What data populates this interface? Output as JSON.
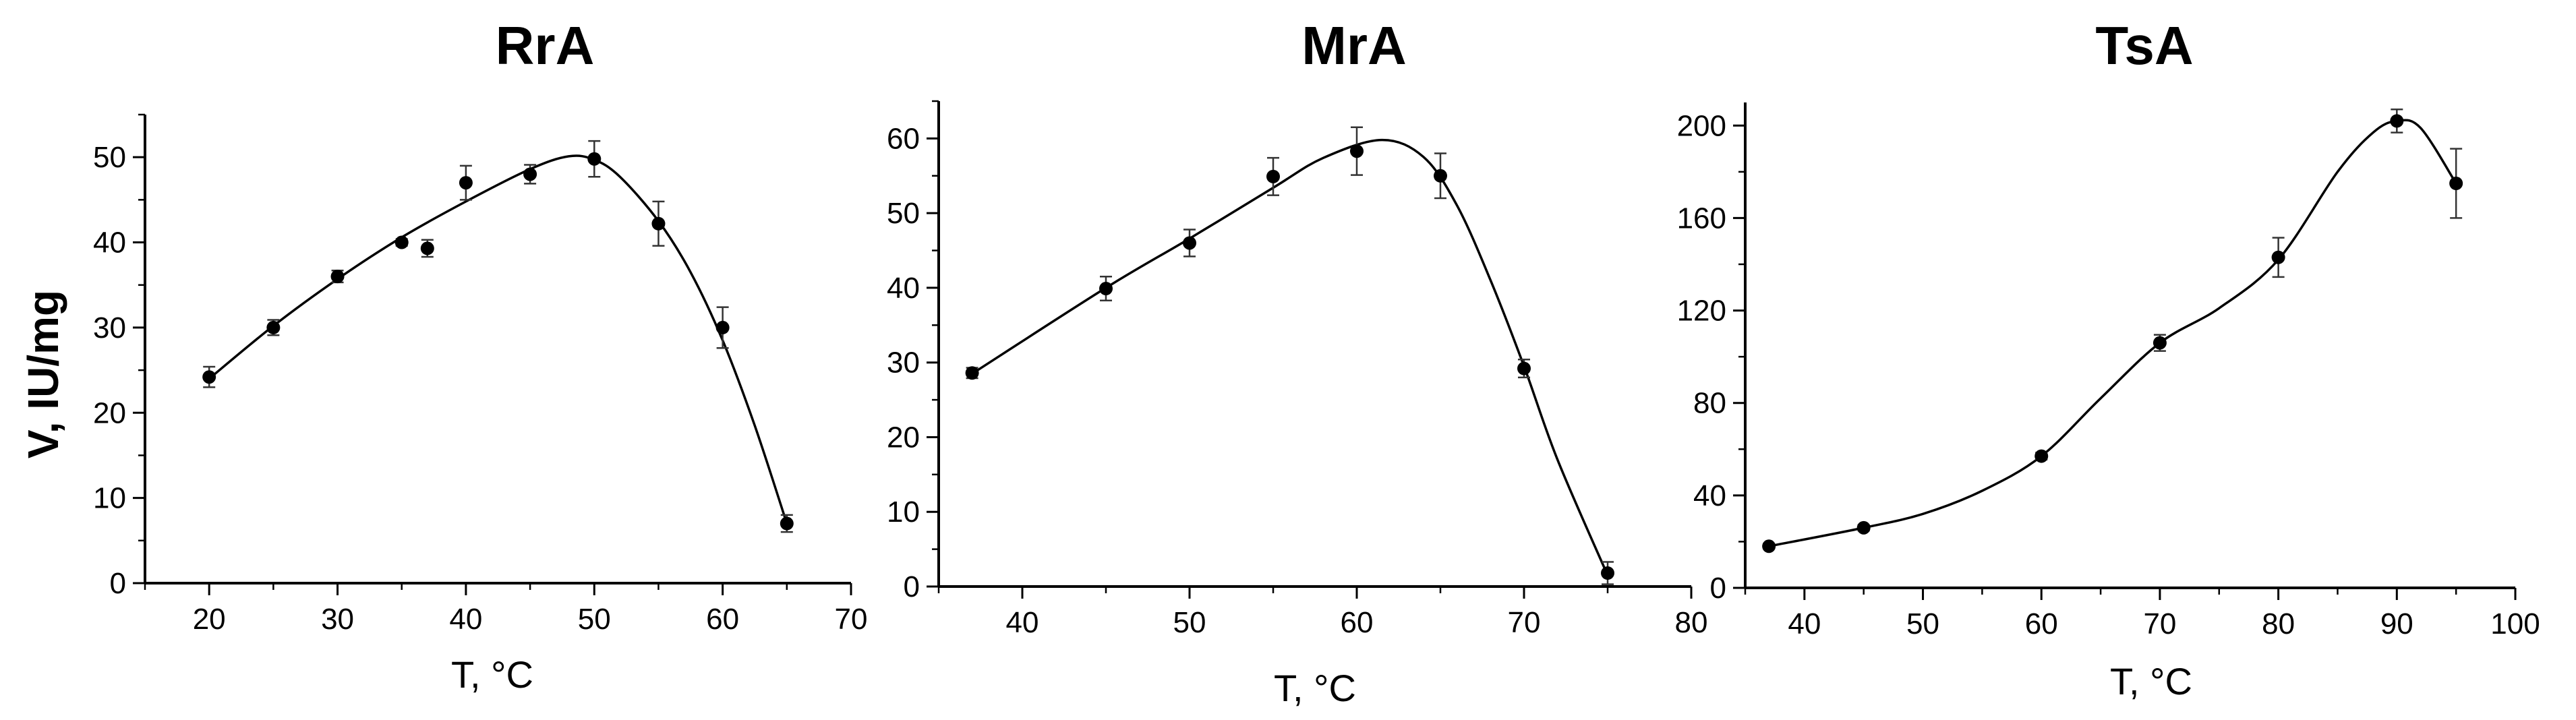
{
  "ylabel": "V, IU/mg",
  "chart_data": [
    {
      "type": "scatter",
      "title": "RrA",
      "xlabel": "T, °C",
      "ylabel": "V, IU/mg",
      "xlim": [
        15,
        70
      ],
      "ylim": [
        0,
        55
      ],
      "xticks": [
        20,
        30,
        40,
        50,
        60,
        70
      ],
      "yticks": [
        0,
        10,
        20,
        30,
        40,
        50
      ],
      "x": [
        20,
        25,
        30,
        35,
        37,
        40,
        45,
        50,
        55,
        60,
        65
      ],
      "y": [
        24.2,
        30,
        36,
        40,
        39.3,
        47,
        48,
        49.8,
        42.2,
        30,
        7
      ],
      "error": [
        1.2,
        0.9,
        0.7,
        0.4,
        1,
        2,
        1.1,
        2.1,
        2.6,
        2.4,
        1
      ],
      "fit_curve": {
        "x": [
          20,
          25,
          30,
          35,
          40,
          45,
          48,
          50,
          52,
          55,
          57.5,
          60,
          62.5,
          65
        ],
        "y": [
          24,
          30.2,
          35.7,
          40.6,
          44.8,
          48.6,
          50.1,
          49.7,
          47.7,
          42.5,
          36.5,
          28.5,
          18.5,
          7
        ]
      }
    },
    {
      "type": "scatter",
      "title": "MrA",
      "xlabel": "T, °C",
      "ylabel": "",
      "xlim": [
        35,
        80
      ],
      "ylim": [
        0,
        65
      ],
      "xticks": [
        40,
        50,
        60,
        70,
        80
      ],
      "yticks": [
        0,
        10,
        20,
        30,
        40,
        50,
        60
      ],
      "x": [
        37,
        45,
        50,
        55,
        60,
        65,
        70,
        75
      ],
      "y": [
        28.6,
        39.9,
        46,
        54.9,
        58.3,
        55,
        29.2,
        1.8
      ],
      "error": [
        0.7,
        1.6,
        1.8,
        2.5,
        3.2,
        3,
        1.2,
        1.5
      ],
      "fit_curve": {
        "x": [
          37,
          45,
          50,
          55,
          58,
          61.5,
          64,
          66,
          68,
          70,
          72,
          75
        ],
        "y": [
          28.5,
          40,
          46.6,
          53.4,
          57.4,
          59.8,
          57.5,
          51,
          41,
          29.5,
          17,
          1.5
        ]
      }
    },
    {
      "type": "scatter",
      "title": "TsA",
      "xlabel": "T, °C",
      "ylabel": "",
      "xlim": [
        35,
        100
      ],
      "ylim": [
        0,
        210
      ],
      "xticks": [
        40,
        50,
        60,
        70,
        80,
        90,
        100
      ],
      "yticks": [
        0,
        40,
        80,
        120,
        160,
        200
      ],
      "x": [
        37,
        45,
        60,
        70,
        80,
        90,
        95
      ],
      "y": [
        18,
        26,
        57,
        106,
        143,
        202,
        175
      ],
      "error": [
        1,
        1.2,
        1.5,
        3.5,
        8.5,
        5,
        15
      ],
      "fit_curve": {
        "x": [
          37,
          45,
          50,
          55,
          60,
          65,
          70,
          75,
          80,
          85,
          88,
          90,
          92,
          95
        ],
        "y": [
          18,
          26,
          32,
          42,
          57,
          82,
          106,
          121,
          142,
          180,
          197,
          202,
          199,
          175
        ]
      }
    }
  ]
}
